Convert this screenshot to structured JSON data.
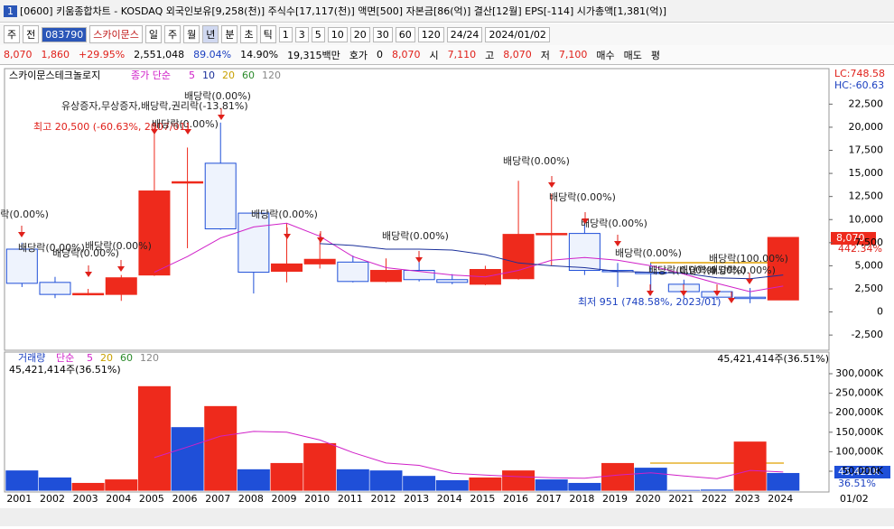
{
  "window": {
    "number": "1",
    "title": "[0600] 키움종합차트 - KOSDAQ 외국인보유[9,258(천)] 주식수[17,117(천)] 액면[500] 자본금[86(억)] 결산[12월] EPS[-114] 시가총액[1,381(억)]"
  },
  "toolbar": {
    "items": [
      "주",
      "전",
      "083790",
      "스카이문스",
      "일",
      "주",
      "월",
      "년",
      "분",
      "초",
      "틱",
      "1",
      "3",
      "5",
      "10",
      "20",
      "30",
      "60",
      "120",
      "24/24",
      "2024/01/02"
    ],
    "selected_index": 7
  },
  "quote": {
    "items": [
      {
        "text": "8,070",
        "color": "#e0201a"
      },
      {
        "text": "1,860",
        "color": "#e0201a"
      },
      {
        "text": "+29.95%",
        "color": "#e0201a"
      },
      {
        "text": "2,551,048",
        "color": "#000000"
      },
      {
        "text": "89.04%",
        "color": "#1a3fc0"
      },
      {
        "text": "14.90%",
        "color": "#000000"
      },
      {
        "text": "19,315백만",
        "color": "#000000"
      },
      {
        "text": "호가",
        "color": "#000000"
      },
      {
        "text": "0",
        "color": "#000000"
      },
      {
        "text": "8,070",
        "color": "#e0201a"
      },
      {
        "text": "시",
        "color": "#000000"
      },
      {
        "text": "7,110",
        "color": "#e0201a"
      },
      {
        "text": "고",
        "color": "#000000"
      },
      {
        "text": "8,070",
        "color": "#e0201a"
      },
      {
        "text": "저",
        "color": "#000000"
      },
      {
        "text": "7,100",
        "color": "#e0201a"
      },
      {
        "text": "매수",
        "color": "#000000"
      },
      {
        "text": "매도",
        "color": "#000000"
      },
      {
        "text": "평",
        "color": "#000000"
      }
    ]
  },
  "annotations": [
    "유상증자,무상증자,배당락,권리락(-13.81%)",
    "배당락(0.00%)",
    "최고 20,500 (-60.63%, 2007/01)",
    "배당락(0.00%)",
    "배당락(0.00%)",
    "배당락(0.00%)",
    "배당락(0.00%)",
    "배당락(0.00%)",
    "배당락(0.00%)",
    "배당락(0.00%)",
    "배당락(0.00%)",
    "배당락(0.00%)",
    "배당락(0.00%)",
    "배당락(0.00%)",
    "배당락(0.00%)",
    "배당락(0.00%)",
    "배당락(100.00%)",
    "배당락(0.00%)",
    "최저 951 (748.58%, 2023/01)"
  ],
  "price_panel": {
    "lc": "LC:748.58",
    "hc": "HC:-60.63",
    "last": "8,070",
    "last_change": "442.34%"
  },
  "volume_panel": {
    "info": "45,421,414주(36.51%)",
    "last": "45,421K",
    "last_pct": "36.51%"
  },
  "x_end_label": "01/02",
  "chart_data": [
    {
      "type": "candlestick",
      "title": "스카이문스테크놀로지",
      "ma_label": "종가 단순",
      "categories": [
        "2001",
        "2002",
        "2003",
        "2004",
        "2005",
        "2006",
        "2007",
        "2008",
        "2009",
        "2010",
        "2011",
        "2012",
        "2013",
        "2014",
        "2015",
        "2016",
        "2017",
        "2018",
        "2019",
        "2020",
        "2021",
        "2022",
        "2023",
        "2024"
      ],
      "open": [
        6800,
        3200,
        1900,
        1900,
        4000,
        14000,
        16100,
        10700,
        4400,
        5200,
        5400,
        3300,
        4500,
        3500,
        3000,
        3600,
        8400,
        8500,
        4500,
        4300,
        3000,
        2200,
        1600,
        1300
      ],
      "high": [
        7500,
        3800,
        2500,
        4000,
        20500,
        17800,
        20500,
        10800,
        9600,
        8500,
        6100,
        5800,
        6000,
        4100,
        5000,
        14200,
        12800,
        9900,
        5300,
        5300,
        3500,
        2500,
        2600,
        8070
      ],
      "low": [
        2700,
        1500,
        1800,
        1200,
        3900,
        6900,
        8900,
        2000,
        3200,
        4700,
        3200,
        3200,
        3300,
        3000,
        2900,
        3500,
        5000,
        4000,
        2700,
        1800,
        1500,
        1300,
        951,
        1300
      ],
      "close": [
        3100,
        1900,
        2000,
        3700,
        13100,
        14100,
        9000,
        4300,
        5200,
        5700,
        3300,
        4500,
        3500,
        3200,
        4600,
        8400,
        8500,
        4500,
        4400,
        4200,
        2200,
        1600,
        1500,
        8070
      ],
      "up_color": "#ee2a1c",
      "down_color": "#1f4fd8",
      "series": [
        {
          "name": "5",
          "color": "#d020c8",
          "values": [
            null,
            null,
            null,
            null,
            4300,
            6000,
            8000,
            9200,
            9600,
            8200,
            6000,
            4800,
            4400,
            4000,
            3800,
            4500,
            5600,
            5900,
            5600,
            5000,
            4100,
            3100,
            2200,
            2800
          ]
        },
        {
          "name": "10",
          "color": "#1a2f9a",
          "values": [
            null,
            null,
            null,
            null,
            null,
            null,
            null,
            null,
            null,
            7400,
            7200,
            6800,
            6800,
            6700,
            6200,
            5300,
            5000,
            4800,
            4400,
            4300,
            4200,
            3700,
            3600,
            4000
          ]
        }
      ],
      "legend_extra": [
        {
          "name": "20",
          "color": "#c8a000"
        },
        {
          "name": "60",
          "color": "#2a8a2a"
        },
        {
          "name": "120",
          "color": "#888888"
        }
      ],
      "ylim": [
        -4000,
        24000
      ],
      "yticks": [
        {
          "value": 22500,
          "label": "22,500"
        },
        {
          "value": 20000,
          "label": "20,000"
        },
        {
          "value": 17500,
          "label": "17,500"
        },
        {
          "value": 15000,
          "label": "15,000"
        },
        {
          "value": 12500,
          "label": "12,500"
        },
        {
          "value": 10000,
          "label": "10,000"
        },
        {
          "value": 7500,
          "label": "7,500"
        },
        {
          "value": 5000,
          "label": "5,000"
        },
        {
          "value": 2500,
          "label": "2,500"
        },
        0,
        {
          "value": -2500,
          "label": "-2,500"
        }
      ]
    },
    {
      "type": "bar",
      "title": "거래량",
      "ma_label": "단순",
      "categories": [
        "2001",
        "2002",
        "2003",
        "2004",
        "2005",
        "2006",
        "2007",
        "2008",
        "2009",
        "2010",
        "2011",
        "2012",
        "2013",
        "2014",
        "2015",
        "2016",
        "2017",
        "2018",
        "2019",
        "2020",
        "2021",
        "2022",
        "2023",
        "2024"
      ],
      "values": [
        52000,
        34000,
        20000,
        29000,
        268000,
        163000,
        217000,
        55000,
        71000,
        122000,
        55000,
        52000,
        38000,
        27000,
        34000,
        52000,
        29000,
        20000,
        71000,
        59000,
        2000,
        3000,
        126000,
        45421
      ],
      "colors": [
        "#1f4fd8",
        "#1f4fd8",
        "#ee2a1c",
        "#ee2a1c",
        "#ee2a1c",
        "#1f4fd8",
        "#ee2a1c",
        "#1f4fd8",
        "#ee2a1c",
        "#ee2a1c",
        "#1f4fd8",
        "#1f4fd8",
        "#1f4fd8",
        "#1f4fd8",
        "#ee2a1c",
        "#ee2a1c",
        "#1f4fd8",
        "#1f4fd8",
        "#ee2a1c",
        "#1f4fd8",
        "#1f4fd8",
        "#1f4fd8",
        "#ee2a1c",
        "#1f4fd8"
      ],
      "series": [
        {
          "name": "5",
          "color": "#d020c8",
          "values": [
            null,
            null,
            null,
            null,
            85000,
            112000,
            140000,
            152000,
            150000,
            130000,
            98000,
            71000,
            65000,
            45000,
            40000,
            36000,
            33000,
            32000,
            40000,
            46000,
            38000,
            31000,
            52000,
            48000
          ]
        }
      ],
      "legend_extra": [
        {
          "name": "20",
          "color": "#c8a000"
        },
        {
          "name": "60",
          "color": "#2a8a2a"
        },
        {
          "name": "120",
          "color": "#888888"
        }
      ],
      "ylim": [
        0,
        340000
      ],
      "yticks": [
        {
          "value": 300000,
          "label": "300,000K"
        },
        {
          "value": 250000,
          "label": "250,000K"
        },
        {
          "value": 200000,
          "label": "200,000K"
        },
        {
          "value": 150000,
          "label": "150,000K"
        },
        {
          "value": 100000,
          "label": "100,000K"
        },
        {
          "value": 50000,
          "label": "50,000K"
        }
      ]
    }
  ]
}
